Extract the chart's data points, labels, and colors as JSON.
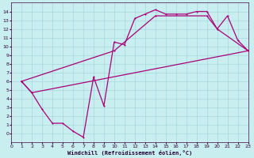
{
  "xlabel": "Windchill (Refroidissement éolien,°C)",
  "bg_color": "#c8eef0",
  "grid_color": "#a8d8dc",
  "line_color": "#aa0077",
  "xlim": [
    0,
    23
  ],
  "ylim": [
    -1,
    15
  ],
  "xticks": [
    0,
    1,
    2,
    3,
    4,
    5,
    6,
    7,
    8,
    9,
    10,
    11,
    12,
    13,
    14,
    15,
    16,
    17,
    18,
    19,
    20,
    21,
    22,
    23
  ],
  "yticks": [
    0,
    1,
    2,
    3,
    4,
    5,
    6,
    7,
    8,
    9,
    10,
    11,
    12,
    13,
    14
  ],
  "line1_x": [
    1,
    2,
    3,
    4,
    5,
    6,
    7,
    8,
    9,
    10,
    11,
    12,
    13,
    14,
    15,
    16,
    17,
    18,
    19,
    20,
    21,
    22,
    23
  ],
  "line1_y": [
    6.0,
    4.7,
    2.8,
    1.2,
    1.2,
    0.3,
    -0.4,
    6.5,
    3.2,
    10.5,
    10.2,
    13.2,
    13.7,
    14.2,
    13.7,
    13.7,
    13.7,
    14.0,
    14.0,
    12.0,
    13.5,
    10.7,
    9.5
  ],
  "line2_x": [
    1,
    2,
    23
  ],
  "line2_y": [
    6.0,
    4.7,
    9.5
  ],
  "line3_x": [
    1,
    10,
    14,
    19,
    20,
    23
  ],
  "line3_y": [
    6.0,
    9.5,
    13.5,
    13.5,
    12.0,
    9.5
  ]
}
